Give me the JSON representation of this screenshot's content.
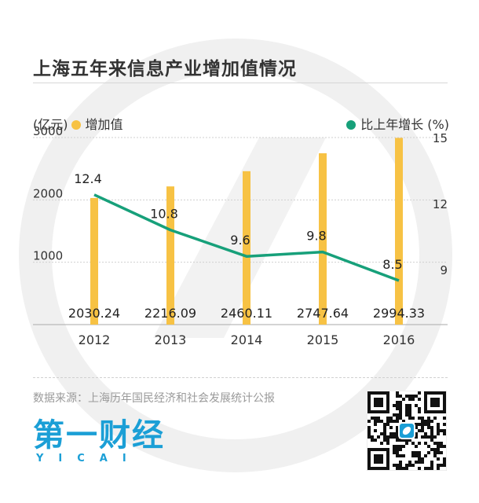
{
  "title": "上海五年来信息产业增加值情况",
  "legend": {
    "bar_unit": "(亿元)",
    "bar_label": "增加值",
    "line_label": "比上年增长 (%)"
  },
  "colors": {
    "bar": "#f7c244",
    "line": "#17a07a",
    "watermark": "#efefef",
    "brand": "#1b9fd6"
  },
  "chart_data": {
    "type": "bar",
    "categories": [
      "2012",
      "2013",
      "2014",
      "2015",
      "2016"
    ],
    "series": [
      {
        "name": "增加值",
        "type": "bar",
        "axis": "left",
        "values": [
          2030.24,
          2216.09,
          2460.11,
          2747.64,
          2994.33
        ]
      },
      {
        "name": "比上年增长 (%)",
        "type": "line",
        "axis": "right",
        "values": [
          12.4,
          10.8,
          9.6,
          9.8,
          8.5
        ]
      }
    ],
    "left_axis": {
      "ticks": [
        "1000",
        "2000",
        "3000"
      ],
      "range": [
        0,
        3000
      ],
      "unit": "(亿元)"
    },
    "right_axis": {
      "ticks": [
        "9",
        "12",
        "15"
      ],
      "range": [
        6.5,
        15
      ],
      "unit": "%"
    },
    "bar_labels": [
      "2030.24",
      "2216.09",
      "2460.11",
      "2747.64",
      "2994.33"
    ],
    "line_labels": [
      "12.4",
      "10.8",
      "9.6",
      "9.8",
      "8.5"
    ],
    "grid": true,
    "legend_position": "top"
  },
  "source": "数据来源：上海历年国民经济和社会发展统计公报",
  "logo": {
    "main": "第一财经",
    "sub": "YICAI"
  },
  "qr_icon": "qr-code-icon"
}
